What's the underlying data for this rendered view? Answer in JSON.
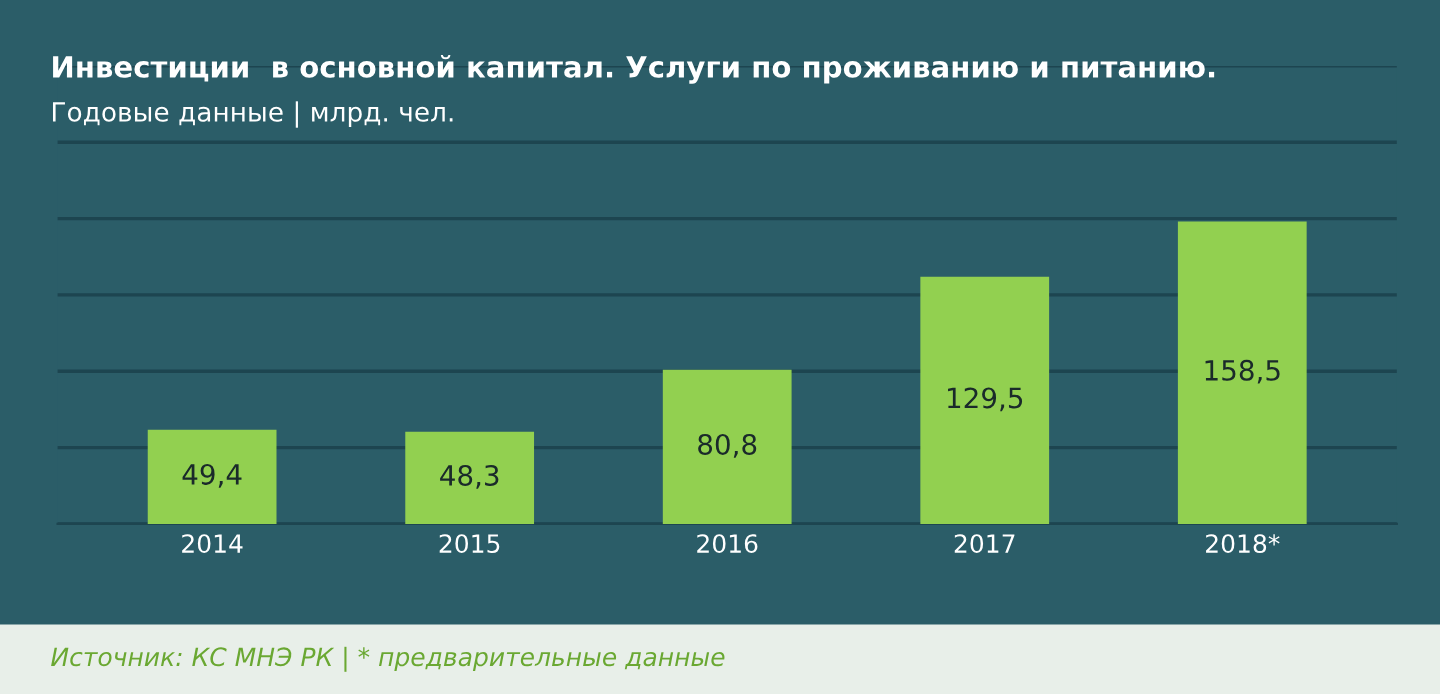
{
  "chart_data": {
    "type": "bar",
    "title": "Инвестиции  в основной капитал. Услуги по проживанию и питанию.",
    "subtitle": "Годовые данные | млрд. чел.",
    "categories": [
      "2014",
      "2015",
      "2016",
      "2017",
      "2018*"
    ],
    "values": [
      49.4,
      48.3,
      80.8,
      129.5,
      158.5
    ],
    "color": "#92d050",
    "data_labels": true,
    "value_labels": [
      "49,4",
      "48,3",
      "80,8",
      "129,5",
      "158,5"
    ],
    "ylim": [
      0,
      240
    ],
    "yticks": [
      {
        "value": 0,
        "label": null
      },
      {
        "value": 40,
        "label": null
      },
      {
        "value": 80,
        "label": null
      },
      {
        "value": 120,
        "label": null
      },
      {
        "value": 160,
        "label": null
      },
      {
        "value": 200,
        "label": null
      },
      {
        "value": 240,
        "label": null
      }
    ],
    "grid": "y",
    "tick_labels": "x",
    "annotations": [
      "Источник: КС МНЭ РК | * предварительные данные"
    ]
  }
}
